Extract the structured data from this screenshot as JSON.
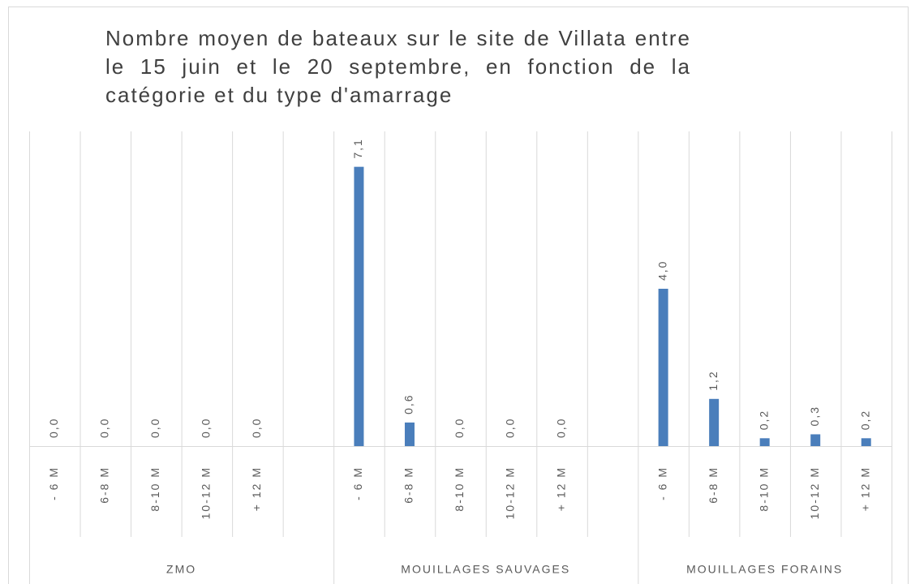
{
  "chart_data": {
    "type": "bar",
    "title": "Nombre moyen de bateaux sur le site de Villata entre le 15 juin et le 20 septembre, en fonction de la catégorie et du type d'amarrage",
    "color": "#4a7ebb",
    "ylim": [
      0,
      8
    ],
    "groups": [
      {
        "label": "ZMO",
        "categories": [
          "- 6 M",
          "6-8 M",
          "8-10 M",
          "10-12 M",
          "+ 12 M",
          null
        ],
        "values": [
          0,
          0,
          0,
          0,
          0,
          null
        ],
        "value_labels": [
          "0,0",
          "0,0",
          "0,0",
          "0,0",
          "0,0",
          null
        ]
      },
      {
        "label": "MOUILLAGES SAUVAGES",
        "categories": [
          "- 6 M",
          "6-8 M",
          "8-10 M",
          "10-12 M",
          "+ 12 M",
          null
        ],
        "values": [
          7.1,
          0.6,
          0,
          0,
          0,
          null
        ],
        "value_labels": [
          "7,1",
          "0,6",
          "0,0",
          "0,0",
          "0,0",
          null
        ]
      },
      {
        "label": "MOUILLAGES FORAINS",
        "categories": [
          "- 6 M",
          "6-8 M",
          "8-10 M",
          "10-12 M",
          "+ 12 M"
        ],
        "values": [
          4.0,
          1.2,
          0.2,
          0.3,
          0.2
        ],
        "value_labels": [
          "4,0",
          "1,2",
          "0,2",
          "0,3",
          "0,2"
        ]
      }
    ]
  }
}
